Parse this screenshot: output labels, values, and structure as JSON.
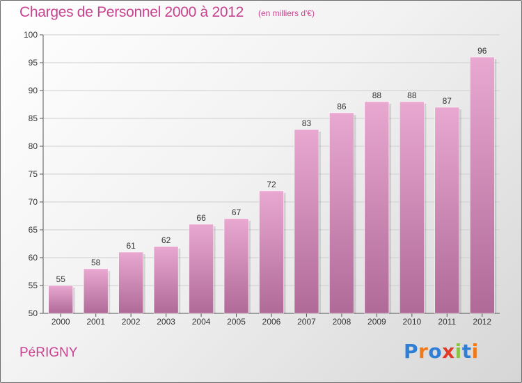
{
  "header": {
    "title": "Charges de Personnel 2000 à 2012",
    "subtitle": "(en milliers d'€)"
  },
  "footer": {
    "place": "PéRIGNY",
    "logo_letters": [
      "P",
      "r",
      "o",
      "x",
      "i",
      "t",
      "i"
    ],
    "logo_colors": [
      "#2f7fd6",
      "#f07a1a",
      "#2f7fd6",
      "#e23a2a",
      "#8bc34a",
      "#2f7fd6",
      "#f07a1a"
    ]
  },
  "colors": {
    "bar_top": "#e8a8d0",
    "bar_bottom": "#b06a98",
    "title": "#c8438f"
  },
  "chart_data": {
    "type": "bar",
    "title": "Charges de Personnel 2000 à 2012",
    "subtitle": "(en milliers d'€)",
    "categories": [
      "2000",
      "2001",
      "2002",
      "2003",
      "2004",
      "2005",
      "2006",
      "2007",
      "2008",
      "2009",
      "2010",
      "2011",
      "2012"
    ],
    "values": [
      55,
      58,
      61,
      62,
      66,
      67,
      72,
      83,
      86,
      88,
      88,
      87,
      96
    ],
    "ylim": [
      50,
      100
    ],
    "yticks": [
      50,
      55,
      60,
      65,
      70,
      75,
      80,
      85,
      90,
      95,
      100
    ],
    "grid": true,
    "data_labels": true
  }
}
